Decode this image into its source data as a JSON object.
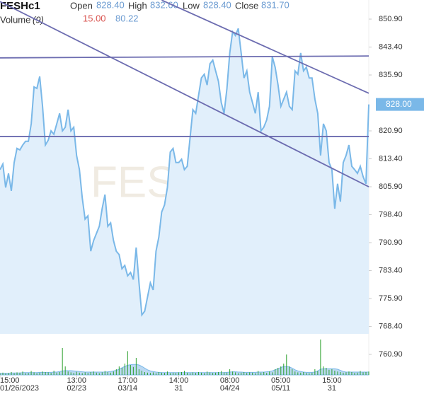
{
  "chart_data": {
    "type": "line",
    "symbol": "FESHc1",
    "watermark": "FESH",
    "ohlc": {
      "open_label": "Open",
      "open": "828.40",
      "high_label": "High",
      "high": "832.60",
      "low_label": "Low",
      "low": "828.40",
      "close_label": "Close",
      "close": "831.70"
    },
    "volume_legend": {
      "label": "Volume",
      "period": "(9)",
      "value": "15.00",
      "average": "80.22"
    },
    "xlim": [
      0,
      130
    ],
    "xticks": [
      {
        "value": 0,
        "label": "15:00",
        "date": "01/26/2023"
      },
      {
        "value": 27,
        "label": "13:00",
        "date": "02/23"
      },
      {
        "value": 45,
        "label": "17:00",
        "date": "03/14"
      },
      {
        "value": 63,
        "label": "14:00",
        "date": "31"
      },
      {
        "value": 81,
        "label": "08:00",
        "date": "04/24"
      },
      {
        "value": 99,
        "label": "05:00",
        "date": "05/11"
      },
      {
        "value": 117,
        "label": "15:00",
        "date": "31"
      }
    ],
    "ylim": [
      755.4,
      856.03
    ],
    "yticks": [
      {
        "value": 850.9,
        "label": "850.90"
      },
      {
        "value": 843.4,
        "label": "843.40"
      },
      {
        "value": 835.9,
        "label": "835.90"
      },
      {
        "value": 820.9,
        "label": "820.90"
      },
      {
        "value": 813.4,
        "label": "813.40"
      },
      {
        "value": 805.9,
        "label": "805.90"
      },
      {
        "value": 798.4,
        "label": "798.40"
      },
      {
        "value": 790.9,
        "label": "790.90"
      },
      {
        "value": 783.4,
        "label": "783.40"
      },
      {
        "value": 775.9,
        "label": "775.90"
      },
      {
        "value": 768.4,
        "label": "768.40"
      },
      {
        "value": 760.9,
        "label": "760.90"
      }
    ],
    "series": [
      {
        "name": "FESHc1",
        "color": "#7ab8e8",
        "fill": "#e1effb",
        "values": [
          810.5,
          812.0,
          805.7,
          809.5,
          804.8,
          812.4,
          816.2,
          815.8,
          817.1,
          818.1,
          818.1,
          822.8,
          832.7,
          832.3,
          835.5,
          827.5,
          817.1,
          818.4,
          820.9,
          820.0,
          822.8,
          825.6,
          820.9,
          821.9,
          826.6,
          820.9,
          821.9,
          814.3,
          810.5,
          802.9,
          797.2,
          798.1,
          788.6,
          791.5,
          793.4,
          795.3,
          800.0,
          803.8,
          795.3,
          796.2,
          791.5,
          788.6,
          787.7,
          783.9,
          784.8,
          782.0,
          782.9,
          781.0,
          789.6,
          780.1,
          771.5,
          772.5,
          776.3,
          780.1,
          778.2,
          788.6,
          792.4,
          799.1,
          801.0,
          805.7,
          815.2,
          816.2,
          812.4,
          812.4,
          813.3,
          810.5,
          811.4,
          819.0,
          826.6,
          825.6,
          830.4,
          835.1,
          836.1,
          833.2,
          838.9,
          839.9,
          837.0,
          834.2,
          828.5,
          825.6,
          832.3,
          841.8,
          847.5,
          846.5,
          848.4,
          841.8,
          835.1,
          837.0,
          831.3,
          828.5,
          825.6,
          831.3,
          820.9,
          821.9,
          823.8,
          827.5,
          840.8,
          838.0,
          833.2,
          827.5,
          829.4,
          831.3,
          827.5,
          826.6,
          837.0,
          836.1,
          841.8,
          837.0,
          838.0,
          835.1,
          835.1,
          829.4,
          825.6,
          814.3,
          822.8,
          820.9,
          812.4,
          810.5,
          800.0,
          806.7,
          801.9,
          812.4,
          814.3,
          817.1,
          811.4,
          810.5,
          809.5,
          811.4,
          808.6,
          806.7,
          828.0
        ]
      }
    ],
    "last_value_label": "828.00",
    "trendlines": [
      {
        "color": "#6c6cb0",
        "x": [
          0,
          130
        ],
        "y": [
          855.6,
          805.9
        ]
      },
      {
        "color": "#6c6cb0",
        "x": [
          57,
          130
        ],
        "y": [
          856.0,
          831.0
        ]
      },
      {
        "color": "#6c6cb0",
        "x": [
          0,
          130
        ],
        "y": [
          840.5,
          841.0
        ]
      },
      {
        "color": "#6c6cb0",
        "x": [
          0,
          130
        ],
        "y": [
          819.4,
          819.4
        ]
      }
    ],
    "volume": {
      "color": "#2ca02c",
      "ma_color": "#7ab8e8",
      "ma_fill": "#bcd9f2",
      "ylim": [
        0,
        130
      ],
      "values": [
        6,
        8,
        5,
        7,
        10,
        6,
        9,
        8,
        12,
        6,
        7,
        14,
        9,
        6,
        8,
        12,
        10,
        9,
        7,
        15,
        8,
        10,
        95,
        30,
        12,
        9,
        7,
        11,
        8,
        6,
        9,
        7,
        10,
        12,
        8,
        6,
        9,
        14,
        10,
        8,
        12,
        20,
        30,
        25,
        40,
        84,
        35,
        28,
        60,
        20,
        15,
        10,
        8,
        7,
        9,
        6,
        10,
        8,
        7,
        12,
        6,
        8,
        7,
        9,
        10,
        14,
        8,
        6,
        9,
        7,
        10,
        8,
        6,
        12,
        9,
        7,
        8,
        10,
        14,
        9,
        8,
        20,
        12,
        9,
        6,
        8,
        10,
        7,
        9,
        8,
        6,
        14,
        8,
        10,
        7,
        12,
        9,
        20,
        25,
        30,
        40,
        72,
        30,
        20,
        12,
        9,
        8,
        10,
        7,
        6,
        8,
        20,
        14,
        125,
        30,
        25,
        18,
        20,
        15,
        12,
        10,
        8,
        9,
        12,
        10,
        7,
        8,
        14,
        9,
        10,
        12
      ],
      "ma": [
        6,
        6,
        6,
        6,
        7,
        7,
        7,
        7,
        8,
        8,
        8,
        8,
        8,
        8,
        9,
        9,
        9,
        9,
        9,
        10,
        10,
        12,
        14,
        15,
        15,
        15,
        14,
        13,
        12,
        11,
        10,
        10,
        10,
        10,
        10,
        10,
        10,
        10,
        11,
        12,
        14,
        16,
        20,
        25,
        30,
        34,
        36,
        37,
        37,
        35,
        30,
        24,
        18,
        14,
        12,
        10,
        9,
        8,
        8,
        8,
        8,
        8,
        8,
        8,
        8,
        8,
        8,
        8,
        8,
        8,
        8,
        8,
        8,
        8,
        8,
        8,
        8,
        8,
        8,
        8,
        9,
        10,
        11,
        11,
        10,
        10,
        9,
        9,
        9,
        9,
        9,
        10,
        10,
        10,
        11,
        12,
        14,
        18,
        22,
        26,
        30,
        30,
        28,
        24,
        18,
        14,
        12,
        10,
        9,
        9,
        9,
        10,
        14,
        20,
        22,
        22,
        22,
        22,
        22,
        20,
        16,
        12,
        10,
        10,
        10,
        10,
        10,
        10,
        10,
        10,
        10
      ]
    }
  }
}
